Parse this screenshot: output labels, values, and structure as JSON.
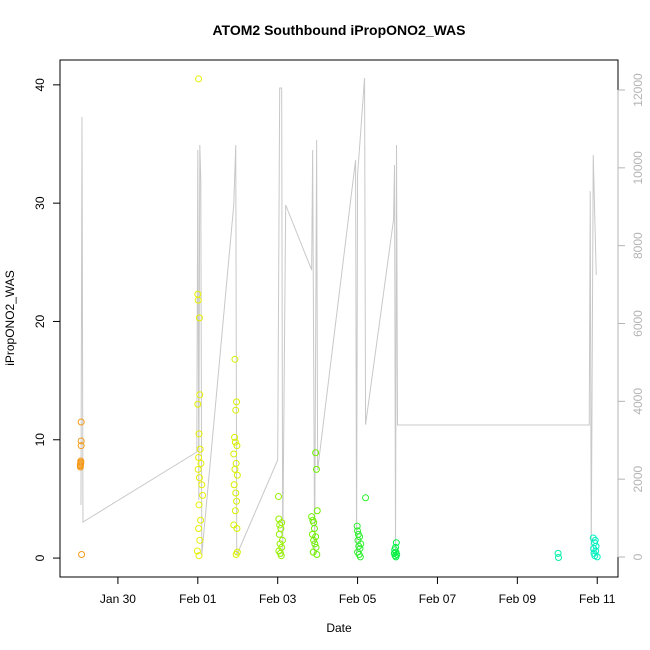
{
  "chart_data": {
    "type": "scatter",
    "title": "ATOM2 Southbound iPropONO2_WAS",
    "x_label": "Date",
    "y_label": "iPropONO2_WAS",
    "xlim": [
      28.55,
      42.52
    ],
    "ylim": [
      -1.6,
      42.1
    ],
    "y2lim": [
      -514,
      12771
    ],
    "xticks": [
      {
        "value": 30,
        "label": "Jan 30"
      },
      {
        "value": 32,
        "label": "Feb 01"
      },
      {
        "value": 34,
        "label": "Feb 03"
      },
      {
        "value": 36,
        "label": "Feb 05"
      },
      {
        "value": 38,
        "label": "Feb 07"
      },
      {
        "value": 40,
        "label": "Feb 09"
      },
      {
        "value": 42,
        "label": "Feb 11"
      }
    ],
    "yticks": [
      0,
      10,
      20,
      30,
      40
    ],
    "y2ticks": [
      0,
      2000,
      4000,
      6000,
      8000,
      10000,
      12000
    ],
    "series": [
      {
        "type": "line",
        "axis": "y2",
        "color": "#c8c8c8",
        "x": [
          29.075,
          29.1,
          29.125,
          31.975,
          32.0,
          32.025,
          32.05,
          32.075,
          32.1,
          32.9,
          32.95,
          32.975,
          34.0,
          34.05,
          34.1,
          34.125,
          34.2,
          34.85,
          34.875,
          34.925,
          34.975,
          35.0,
          35.95,
          35.975,
          36.0,
          36.175,
          36.2,
          36.9,
          36.925,
          36.95,
          36.975,
          37.0,
          41.8,
          41.825,
          41.85,
          41.9,
          41.975
        ],
        "values": [
          1336,
          11306,
          899,
          2698,
          10458,
          1465,
          10587,
          9687,
          51,
          9045,
          10587,
          51,
          2493,
          12051,
          12051,
          51,
          9045,
          7375,
          10458,
          51,
          10715,
          2236,
          10201,
          51,
          9816,
          12308,
          3400,
          8660,
          10073,
          51,
          10587,
          3392,
          3392,
          9400,
          51,
          10329,
          7250
        ]
      },
      {
        "color": "#f59a1a",
        "x": [
          29.06,
          29.06,
          29.07,
          29.07,
          29.08,
          29.08,
          29.08,
          29.09,
          29.06,
          29.07
        ],
        "values": [
          7.7,
          7.9,
          8.1,
          8.2,
          9.5,
          9.9,
          11.5,
          0.3,
          7.8,
          8.0
        ]
      },
      {
        "color": "#e6f000",
        "x": [
          32.02,
          32.0,
          32.01,
          32.04,
          32.05,
          32.0,
          32.03,
          32.06,
          32.02,
          32.08,
          32.01,
          32.04,
          32.1,
          32.12,
          32.03,
          32.07,
          32.02,
          32.05,
          31.99,
          32.03
        ],
        "values": [
          40.5,
          22.3,
          21.8,
          20.3,
          13.8,
          13.0,
          10.5,
          9.2,
          8.5,
          8.0,
          7.5,
          6.8,
          6.2,
          5.3,
          4.5,
          3.2,
          2.5,
          1.5,
          0.6,
          0.2
        ]
      },
      {
        "color": "#d8f000",
        "x": [
          32.93,
          32.97,
          32.95,
          32.92,
          32.94,
          32.98,
          32.9,
          32.96,
          32.93,
          32.99,
          32.91,
          32.95,
          32.97,
          32.94,
          32.9,
          32.98,
          32.99,
          32.96
        ],
        "values": [
          16.8,
          13.2,
          12.5,
          10.2,
          9.8,
          9.5,
          8.8,
          8.0,
          7.5,
          7.0,
          6.2,
          5.5,
          4.8,
          4.0,
          2.8,
          2.5,
          0.5,
          0.3
        ]
      },
      {
        "color": "#96f000",
        "x": [
          34.02,
          34.03,
          34.1,
          34.05,
          34.08,
          34.04,
          34.12,
          34.06,
          34.1,
          34.03,
          34.07,
          34.09
        ],
        "values": [
          5.2,
          3.3,
          3.0,
          2.8,
          2.5,
          2.0,
          1.5,
          1.2,
          0.9,
          0.6,
          0.4,
          0.2
        ]
      },
      {
        "color": "#70f000",
        "x": [
          34.95,
          34.97,
          34.99,
          34.85,
          34.88,
          34.9,
          34.92,
          34.87,
          34.95,
          34.9,
          34.93,
          34.96,
          34.89,
          34.98
        ],
        "values": [
          8.9,
          7.5,
          4.0,
          3.5,
          3.2,
          3.0,
          2.5,
          2.0,
          1.8,
          1.5,
          1.2,
          0.9,
          0.5,
          0.3
        ]
      },
      {
        "color": "#30f030",
        "x": [
          36.2,
          35.99,
          36.0,
          36.02,
          36.05,
          36.01,
          36.08,
          36.03,
          36.06,
          36.0,
          36.04,
          36.07
        ],
        "values": [
          5.1,
          2.7,
          2.3,
          2.0,
          1.8,
          1.5,
          1.2,
          1.0,
          0.8,
          0.5,
          0.3,
          0.1
        ]
      },
      {
        "color": "#00f040",
        "x": [
          36.97,
          36.95,
          36.93,
          36.96,
          36.92,
          36.98,
          36.94,
          36.96
        ],
        "values": [
          1.3,
          0.9,
          0.7,
          0.5,
          0.4,
          0.3,
          0.2,
          0.1
        ]
      },
      {
        "color": "#00f0a8",
        "x": [
          41.02,
          41.03
        ],
        "values": [
          0.4,
          0.05
        ]
      },
      {
        "color": "#00f0c0",
        "x": [
          41.9,
          41.95,
          41.93,
          41.97,
          41.91,
          41.96,
          41.92,
          41.94,
          42.0
        ],
        "values": [
          1.7,
          1.5,
          1.3,
          1.0,
          0.8,
          0.6,
          0.4,
          0.2,
          0.1
        ]
      }
    ]
  }
}
